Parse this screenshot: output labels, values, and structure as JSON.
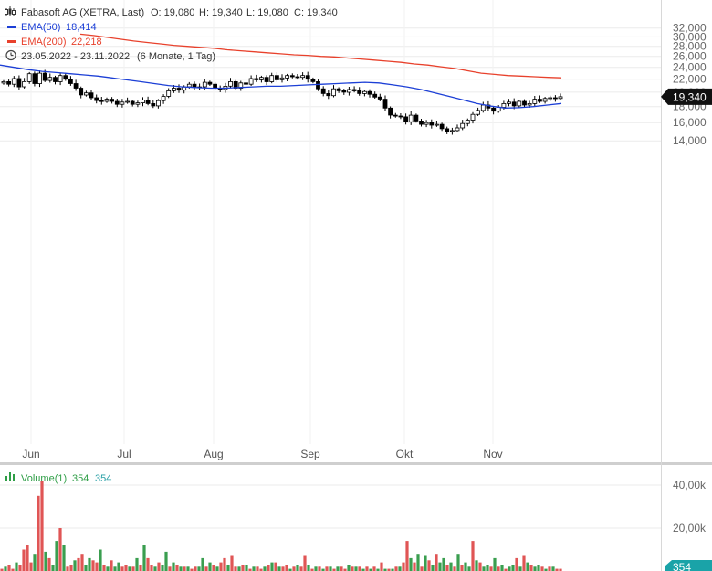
{
  "legend": {
    "title": "Fabasoft AG (XETRA, Last)",
    "open": "O: 19,080",
    "high": "H: 19,340",
    "low": "L: 19,080",
    "close": "C: 19,340",
    "ema50_label": "EMA(50)",
    "ema50_value": "18,414",
    "ema200_label": "EMA(200)",
    "ema200_value": "22,218",
    "date_range": "23.05.2022 - 23.11.2022",
    "period": "(6 Monate, 1 Tag)",
    "volume_label": "Volume(1)",
    "volume_value1": "354",
    "volume_value2": "354"
  },
  "price_badge": "19,340",
  "volume_badge": "354",
  "icons": {
    "candles": "candlestick-icon",
    "clock": "clock-icon",
    "volume": "volume-bars-icon"
  },
  "colors": {
    "ema50": "#1c3fd6",
    "ema200": "#e8412c",
    "volume_up": "#3a9e4f",
    "volume_down": "#e05555",
    "candle": "#000000",
    "badge": "#111111"
  },
  "chart_data": [
    {
      "type": "candlestick",
      "title": "Fabasoft AG (XETRA, Last)",
      "x_labels": [
        "Jun",
        "Jul",
        "Aug",
        "Sep",
        "Okt",
        "Nov"
      ],
      "y_ticks": [
        "32,000",
        "30,000",
        "28,000",
        "26,000",
        "24,000",
        "22,000",
        "20,000",
        "18,000",
        "16,000",
        "14,000"
      ],
      "y_tick_values": [
        32,
        30,
        28,
        26,
        24,
        22,
        20,
        18,
        16,
        14
      ],
      "scale": "log",
      "ylim": [
        13.4,
        32.6
      ],
      "grid": true,
      "last_price": 19.34,
      "closes": [
        21.6,
        21.2,
        22.1,
        20.8,
        21.6,
        22.9,
        21.3,
        23.0,
        21.8,
        22.3,
        21.6,
        22.6,
        22.0,
        21.3,
        20.6,
        19.6,
        19.9,
        19.2,
        18.8,
        18.7,
        19.0,
        18.7,
        18.3,
        18.6,
        18.7,
        18.3,
        18.5,
        18.9,
        18.4,
        18.1,
        18.8,
        19.4,
        20.2,
        20.6,
        20.3,
        20.8,
        21.2,
        20.7,
        20.8,
        21.5,
        21.2,
        20.6,
        20.4,
        20.9,
        21.6,
        20.6,
        21.4,
        21.2,
        22.1,
        21.9,
        22.3,
        21.6,
        22.6,
        21.9,
        22.2,
        22.6,
        22.4,
        22.3,
        22.6,
        22.0,
        21.6,
        20.5,
        19.8,
        19.5,
        20.5,
        20.2,
        20.0,
        20.4,
        20.2,
        19.8,
        20.1,
        19.7,
        19.3,
        19.0,
        17.8,
        16.9,
        16.8,
        16.7,
        16.1,
        16.9,
        16.2,
        15.8,
        16.0,
        15.7,
        15.8,
        15.3,
        15.0,
        15.1,
        15.4,
        15.9,
        16.3,
        17.0,
        17.5,
        18.2,
        17.8,
        17.4,
        17.9,
        18.4,
        18.6,
        18.1,
        18.7,
        18.2,
        18.4,
        19.0,
        18.7,
        19.1,
        19.2,
        19.1,
        19.34
      ],
      "series": [
        {
          "name": "EMA(50)",
          "values": [
            24.4,
            24.0,
            23.6,
            23.3,
            23.1,
            22.9,
            22.7,
            22.5,
            22.2,
            21.9,
            21.6,
            21.3,
            21.0,
            20.8,
            20.7,
            20.6,
            20.6,
            20.7,
            20.8,
            20.9,
            20.9,
            21.0,
            21.1,
            21.2,
            21.3,
            21.4,
            21.5,
            21.4,
            21.1,
            20.8,
            20.4,
            19.9,
            19.4,
            18.9,
            18.4,
            18.05,
            17.8,
            17.85,
            18.0,
            18.2,
            18.414
          ]
        },
        {
          "name": "EMA(200)",
          "values": [
            30.6,
            30.3,
            29.9,
            29.5,
            29.1,
            28.8,
            28.5,
            28.2,
            28.0,
            27.8,
            27.6,
            27.3,
            27.1,
            26.9,
            26.7,
            26.5,
            26.3,
            26.2,
            26.0,
            25.9,
            25.7,
            25.5,
            25.3,
            25.1,
            24.9,
            24.6,
            24.4,
            24.1,
            23.8,
            23.4,
            23.0,
            22.8,
            22.6,
            22.5,
            22.4,
            22.3,
            22.218
          ]
        }
      ]
    },
    {
      "type": "bar",
      "title": "Volume(1)",
      "y_ticks": [
        "40,00k",
        "20,00k"
      ],
      "y_tick_values": [
        40,
        20
      ],
      "ylim": [
        0,
        46
      ],
      "last_value": 354,
      "values": [
        1,
        2,
        3,
        1,
        4,
        3,
        10,
        12,
        4,
        8,
        35,
        42,
        9,
        6,
        3,
        14,
        20,
        12,
        2,
        3,
        5,
        6,
        8,
        3,
        6,
        5,
        4,
        10,
        3,
        2,
        5,
        2,
        4,
        2,
        3,
        2,
        2,
        6,
        3,
        12,
        6,
        3,
        2,
        4,
        3,
        9,
        2,
        4,
        3,
        2,
        2,
        2,
        1,
        2,
        2,
        6,
        2,
        4,
        3,
        2,
        4,
        6,
        3,
        7,
        2,
        2,
        3,
        3,
        1,
        2,
        2,
        1,
        2,
        3,
        4,
        4,
        2,
        2,
        3,
        1,
        2,
        3,
        2,
        7,
        3,
        1,
        2,
        2,
        1,
        2,
        2,
        1,
        2,
        2,
        1,
        3,
        2,
        2,
        2,
        1,
        2,
        1,
        2,
        1,
        4,
        1,
        1,
        1,
        2,
        2,
        4,
        14,
        6,
        4,
        8,
        2,
        7,
        5,
        3,
        8,
        4,
        6,
        3,
        4,
        2,
        8,
        3,
        4,
        2,
        14,
        5,
        4,
        2,
        3,
        2,
        6,
        2,
        3,
        1,
        2,
        3,
        6,
        2,
        7,
        4,
        3,
        2,
        3,
        2,
        1,
        2,
        2,
        1,
        1
      ],
      "direction": [
        "d",
        "u",
        "d",
        "d",
        "u",
        "d",
        "d",
        "d",
        "d",
        "u",
        "d",
        "d",
        "u",
        "d",
        "u",
        "u",
        "d",
        "u",
        "d",
        "d",
        "u",
        "d",
        "d",
        "u",
        "u",
        "d",
        "d",
        "u",
        "d",
        "u",
        "d",
        "u",
        "u",
        "d",
        "d",
        "u",
        "d",
        "u",
        "d",
        "u",
        "d",
        "d",
        "u",
        "d",
        "u",
        "u",
        "d",
        "u",
        "d",
        "u",
        "d",
        "u",
        "d",
        "d",
        "u",
        "u",
        "d",
        "u",
        "d",
        "u",
        "d",
        "d",
        "u",
        "d",
        "d",
        "u",
        "d",
        "u",
        "d",
        "u",
        "d",
        "d",
        "u",
        "d",
        "u",
        "d",
        "u",
        "d",
        "d",
        "u",
        "d",
        "u",
        "d",
        "d",
        "u",
        "d",
        "u",
        "d",
        "u",
        "d",
        "u",
        "d",
        "u",
        "d",
        "d",
        "u",
        "d",
        "u",
        "d",
        "u",
        "d",
        "u",
        "d",
        "u",
        "d",
        "u",
        "d",
        "u",
        "d",
        "u",
        "d",
        "d",
        "u",
        "d",
        "u",
        "d",
        "u",
        "d",
        "u",
        "d",
        "u",
        "u",
        "d",
        "u",
        "d",
        "u",
        "d",
        "u",
        "u",
        "d",
        "u",
        "d",
        "u",
        "u",
        "d",
        "u",
        "d",
        "u",
        "d",
        "u",
        "u",
        "d",
        "u",
        "d",
        "u",
        "d",
        "u",
        "u",
        "d",
        "u",
        "d",
        "u",
        "d"
      ]
    }
  ]
}
